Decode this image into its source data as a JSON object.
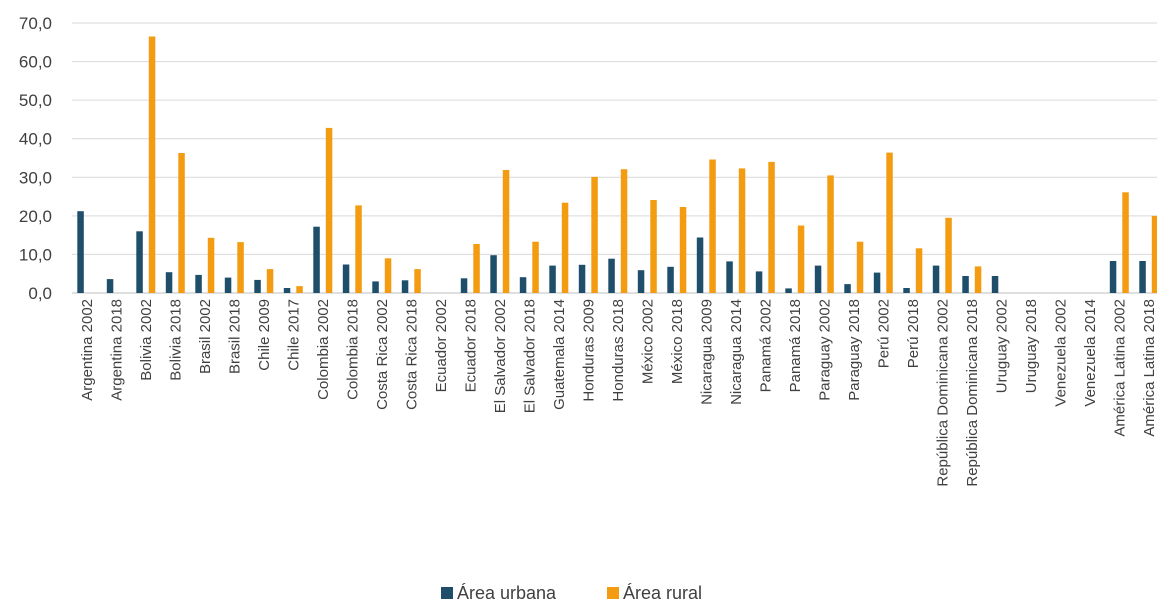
{
  "chart_data": {
    "type": "bar",
    "title": "",
    "xlabel": "",
    "ylabel": "",
    "ylim": [
      0,
      70
    ],
    "yticks": [
      "0,0",
      "10,0",
      "20,0",
      "30,0",
      "40,0",
      "50,0",
      "60,0",
      "70,0"
    ],
    "grid": true,
    "legend_position": "bottom",
    "categories": [
      "Argentina 2002",
      "Argentina 2018",
      "Bolivia 2002",
      "Bolivia 2018",
      "Brasil 2002",
      "Brasil 2018",
      "Chile 2009",
      "Chile 2017",
      "Colombia 2002",
      "Colombia 2018",
      "Costa Rica 2002",
      "Costa Rica 2018",
      "Ecuador 2002",
      "Ecuador 2018",
      "El Salvador 2002",
      "El Salvador 2018",
      "Guatemala 2014",
      "Honduras 2009",
      "Honduras 2018",
      "México 2002",
      "México 2018",
      "Nicaragua 2009",
      "Nicaragua 2014",
      "Panamá 2002",
      "Panamá 2018",
      "Paraguay 2002",
      "Paraguay 2018",
      "Perú 2002",
      "Perú 2018",
      "República Dominicana 2002",
      "República Dominicana 2018",
      "Uruguay 2002",
      "Uruguay 2018",
      "Venezuela 2002",
      "Venezuela 2014",
      "América Latina 2002",
      "América Latina 2018"
    ],
    "series": [
      {
        "name": "Área urbana",
        "color": "#1f4e6b",
        "values": [
          21.2,
          3.6,
          16.0,
          5.4,
          4.7,
          4.0,
          3.4,
          1.3,
          17.2,
          7.4,
          3.0,
          3.3,
          0,
          3.8,
          9.8,
          4.1,
          7.1,
          7.3,
          8.9,
          5.9,
          6.8,
          14.4,
          8.2,
          5.6,
          1.2,
          7.1,
          2.3,
          5.3,
          1.3,
          7.1,
          4.4,
          4.4,
          0,
          0,
          0,
          8.3,
          8.3
        ]
      },
      {
        "name": "Área rural",
        "color": "#f39c12",
        "values": [
          0,
          0,
          66.5,
          36.3,
          14.3,
          13.2,
          6.2,
          1.8,
          42.8,
          22.7,
          9.0,
          6.2,
          0,
          12.7,
          31.9,
          13.3,
          23.4,
          30.1,
          32.1,
          24.1,
          22.3,
          34.6,
          32.3,
          34.0,
          17.5,
          30.5,
          13.3,
          36.4,
          11.6,
          19.5,
          6.9,
          0,
          0,
          0,
          0,
          26.1,
          20.0
        ]
      }
    ]
  }
}
